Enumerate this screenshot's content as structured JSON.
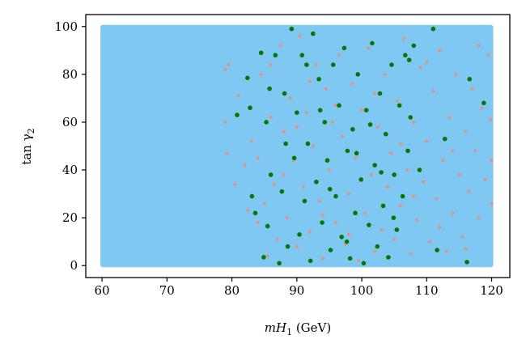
{
  "chart_data": {
    "type": "scatter",
    "title": "",
    "xlabel": {
      "main": "mH",
      "sub": "1",
      "suffix": " (GeV)"
    },
    "ylabel": {
      "main": "tan γ",
      "sub": "2"
    },
    "xlim": [
      57.5,
      122.8
    ],
    "ylim": [
      -5,
      105
    ],
    "xticks": [
      60,
      70,
      80,
      90,
      100,
      110,
      120
    ],
    "yticks": [
      0,
      20,
      40,
      60,
      80,
      100
    ],
    "grid": false,
    "legend": "none",
    "colors": {
      "band": "#7fc8f2",
      "salmon": "#f08c78",
      "green": "#077507",
      "axis": "#000000"
    },
    "series": [
      {
        "marker": "dense-band",
        "color": "#7fc8f2",
        "x_range": [
          60,
          120
        ],
        "y_range": [
          0,
          100
        ]
      },
      {
        "marker": "small-dot",
        "color": "#f08c78",
        "x_range": [
          78.5,
          120
        ],
        "y_range": [
          0,
          100
        ],
        "points": [
          [
            79.0,
            82.0
          ],
          [
            79.5,
            84.0
          ],
          [
            79.0,
            60.0
          ],
          [
            79.3,
            47.0
          ],
          [
            80.5,
            34.0
          ],
          [
            81.0,
            71.0
          ],
          [
            82.0,
            42.0
          ],
          [
            82.5,
            23.0
          ],
          [
            83.0,
            52.0
          ],
          [
            84.0,
            18.0
          ],
          [
            84.5,
            80.0
          ],
          [
            85.0,
            26.0
          ],
          [
            85.5,
            4.0
          ],
          [
            86.0,
            62.0
          ],
          [
            86.5,
            34.0
          ],
          [
            87.0,
            11.0
          ],
          [
            87.5,
            92.0
          ],
          [
            88.0,
            56.0
          ],
          [
            88.5,
            20.0
          ],
          [
            89.0,
            70.0
          ],
          [
            89.5,
            44.0
          ],
          [
            90.0,
            8.0
          ],
          [
            90.5,
            96.0
          ],
          [
            91.0,
            33.0
          ],
          [
            91.5,
            64.0
          ],
          [
            92.0,
            14.0
          ],
          [
            92.5,
            50.0
          ],
          [
            93.0,
            84.0
          ],
          [
            93.5,
            27.0
          ],
          [
            94.0,
            3.0
          ],
          [
            94.5,
            74.0
          ],
          [
            95.0,
            40.0
          ],
          [
            95.5,
            60.0
          ],
          [
            96.0,
            18.0
          ],
          [
            96.5,
            88.0
          ],
          [
            97.0,
            54.0
          ],
          [
            97.5,
            9.0
          ],
          [
            98.0,
            30.0
          ],
          [
            98.5,
            76.0
          ],
          [
            99.0,
            45.0
          ],
          [
            99.5,
            2.0
          ],
          [
            100.0,
            65.0
          ],
          [
            100.5,
            22.0
          ],
          [
            101.0,
            91.0
          ],
          [
            101.5,
            38.0
          ],
          [
            102.0,
            6.0
          ],
          [
            102.5,
            58.0
          ],
          [
            103.0,
            15.0
          ],
          [
            103.5,
            80.0
          ],
          [
            104.0,
            33.0
          ],
          [
            104.5,
            47.0
          ],
          [
            105.0,
            11.0
          ],
          [
            105.5,
            69.0
          ],
          [
            106.0,
            25.0
          ],
          [
            106.5,
            95.0
          ],
          [
            107.0,
            40.0
          ],
          [
            107.5,
            5.0
          ],
          [
            108.0,
            60.0
          ],
          [
            108.5,
            19.0
          ],
          [
            109.0,
            83.0
          ],
          [
            109.5,
            35.0
          ],
          [
            110.0,
            52.0
          ],
          [
            110.5,
            10.0
          ],
          [
            111.0,
            73.0
          ],
          [
            111.5,
            28.0
          ],
          [
            112.0,
            90.0
          ],
          [
            112.5,
            44.0
          ],
          [
            113.0,
            6.0
          ],
          [
            113.5,
            62.0
          ],
          [
            114.0,
            22.0
          ],
          [
            114.5,
            80.0
          ],
          [
            115.0,
            38.0
          ],
          [
            115.5,
            12.0
          ],
          [
            116.0,
            56.0
          ],
          [
            116.5,
            31.0
          ],
          [
            117.0,
            74.0
          ],
          [
            117.5,
            48.0
          ],
          [
            118.0,
            20.0
          ],
          [
            118.5,
            66.0
          ],
          [
            119.0,
            36.0
          ],
          [
            119.5,
            88.0
          ],
          [
            120.0,
            44.0
          ],
          [
            120.0,
            26.0
          ],
          [
            119.8,
            61.0
          ],
          [
            84.0,
            45.0
          ],
          [
            86.0,
            84.0
          ],
          [
            88.0,
            38.0
          ],
          [
            90.0,
            58.0
          ],
          [
            92.0,
            77.0
          ],
          [
            94.0,
            21.0
          ],
          [
            96.0,
            67.0
          ],
          [
            98.0,
            13.0
          ],
          [
            100.0,
            36.0
          ],
          [
            102.0,
            72.0
          ],
          [
            104.0,
            3.0
          ],
          [
            106.0,
            51.0
          ],
          [
            108.0,
            29.0
          ],
          [
            110.0,
            85.0
          ],
          [
            112.0,
            16.0
          ],
          [
            114.0,
            48.0
          ],
          [
            116.0,
            7.0
          ],
          [
            118.0,
            92.0
          ]
        ]
      },
      {
        "marker": "large-dot",
        "color": "#077507",
        "x_range": [
          80.5,
          119
        ],
        "y_range": [
          0,
          100
        ],
        "points": [
          [
            80.8,
            63.0
          ],
          [
            82.4,
            78.5
          ],
          [
            82.8,
            66.0
          ],
          [
            83.1,
            29.0
          ],
          [
            83.6,
            22.0
          ],
          [
            84.5,
            89.0
          ],
          [
            84.9,
            3.5
          ],
          [
            85.3,
            60.0
          ],
          [
            85.5,
            16.5
          ],
          [
            86.0,
            38.0
          ],
          [
            86.7,
            88.0
          ],
          [
            87.3,
            1.0
          ],
          [
            87.7,
            31.0
          ],
          [
            88.1,
            72.0
          ],
          [
            88.6,
            8.0
          ],
          [
            89.2,
            99.0
          ],
          [
            89.6,
            45.0
          ],
          [
            90.0,
            64.0
          ],
          [
            90.4,
            13.0
          ],
          [
            90.8,
            88.0
          ],
          [
            91.2,
            27.0
          ],
          [
            91.7,
            51.0
          ],
          [
            92.1,
            2.0
          ],
          [
            92.5,
            97.0
          ],
          [
            93.0,
            35.0
          ],
          [
            93.4,
            78.0
          ],
          [
            93.9,
            18.0
          ],
          [
            94.3,
            60.0
          ],
          [
            94.7,
            44.0
          ],
          [
            95.2,
            6.5
          ],
          [
            95.6,
            84.0
          ],
          [
            96.0,
            29.0
          ],
          [
            96.5,
            67.0
          ],
          [
            96.9,
            12.0
          ],
          [
            97.3,
            91.0
          ],
          [
            97.8,
            48.0
          ],
          [
            98.2,
            3.0
          ],
          [
            98.6,
            57.0
          ],
          [
            99.0,
            22.0
          ],
          [
            99.4,
            80.0
          ],
          [
            99.9,
            36.0
          ],
          [
            100.3,
            1.0
          ],
          [
            100.7,
            65.0
          ],
          [
            101.1,
            17.0
          ],
          [
            101.6,
            93.0
          ],
          [
            102.0,
            42.0
          ],
          [
            102.4,
            8.0
          ],
          [
            102.8,
            72.0
          ],
          [
            103.3,
            25.0
          ],
          [
            103.7,
            55.0
          ],
          [
            104.1,
            3.5
          ],
          [
            104.6,
            84.0
          ],
          [
            105.0,
            38.0
          ],
          [
            105.4,
            15.0
          ],
          [
            105.8,
            67.0
          ],
          [
            106.3,
            29.0
          ],
          [
            106.7,
            88.0
          ],
          [
            107.1,
            48.0
          ],
          [
            107.5,
            62.0
          ],
          [
            108.0,
            92.0
          ],
          [
            108.9,
            40.0
          ],
          [
            111.0,
            99.0
          ],
          [
            111.6,
            6.5
          ],
          [
            112.8,
            53.0
          ],
          [
            116.2,
            1.5
          ],
          [
            116.6,
            78.0
          ],
          [
            118.8,
            68.0
          ],
          [
            107.3,
            86.0
          ],
          [
            93.6,
            65.0
          ],
          [
            101.3,
            59.0
          ],
          [
            95.1,
            32.0
          ],
          [
            88.3,
            51.0
          ],
          [
            104.9,
            20.0
          ],
          [
            99.2,
            47.0
          ],
          [
            85.8,
            74.0
          ],
          [
            97.7,
            10.0
          ],
          [
            103.0,
            39.0
          ],
          [
            91.5,
            84.0
          ]
        ]
      }
    ]
  }
}
